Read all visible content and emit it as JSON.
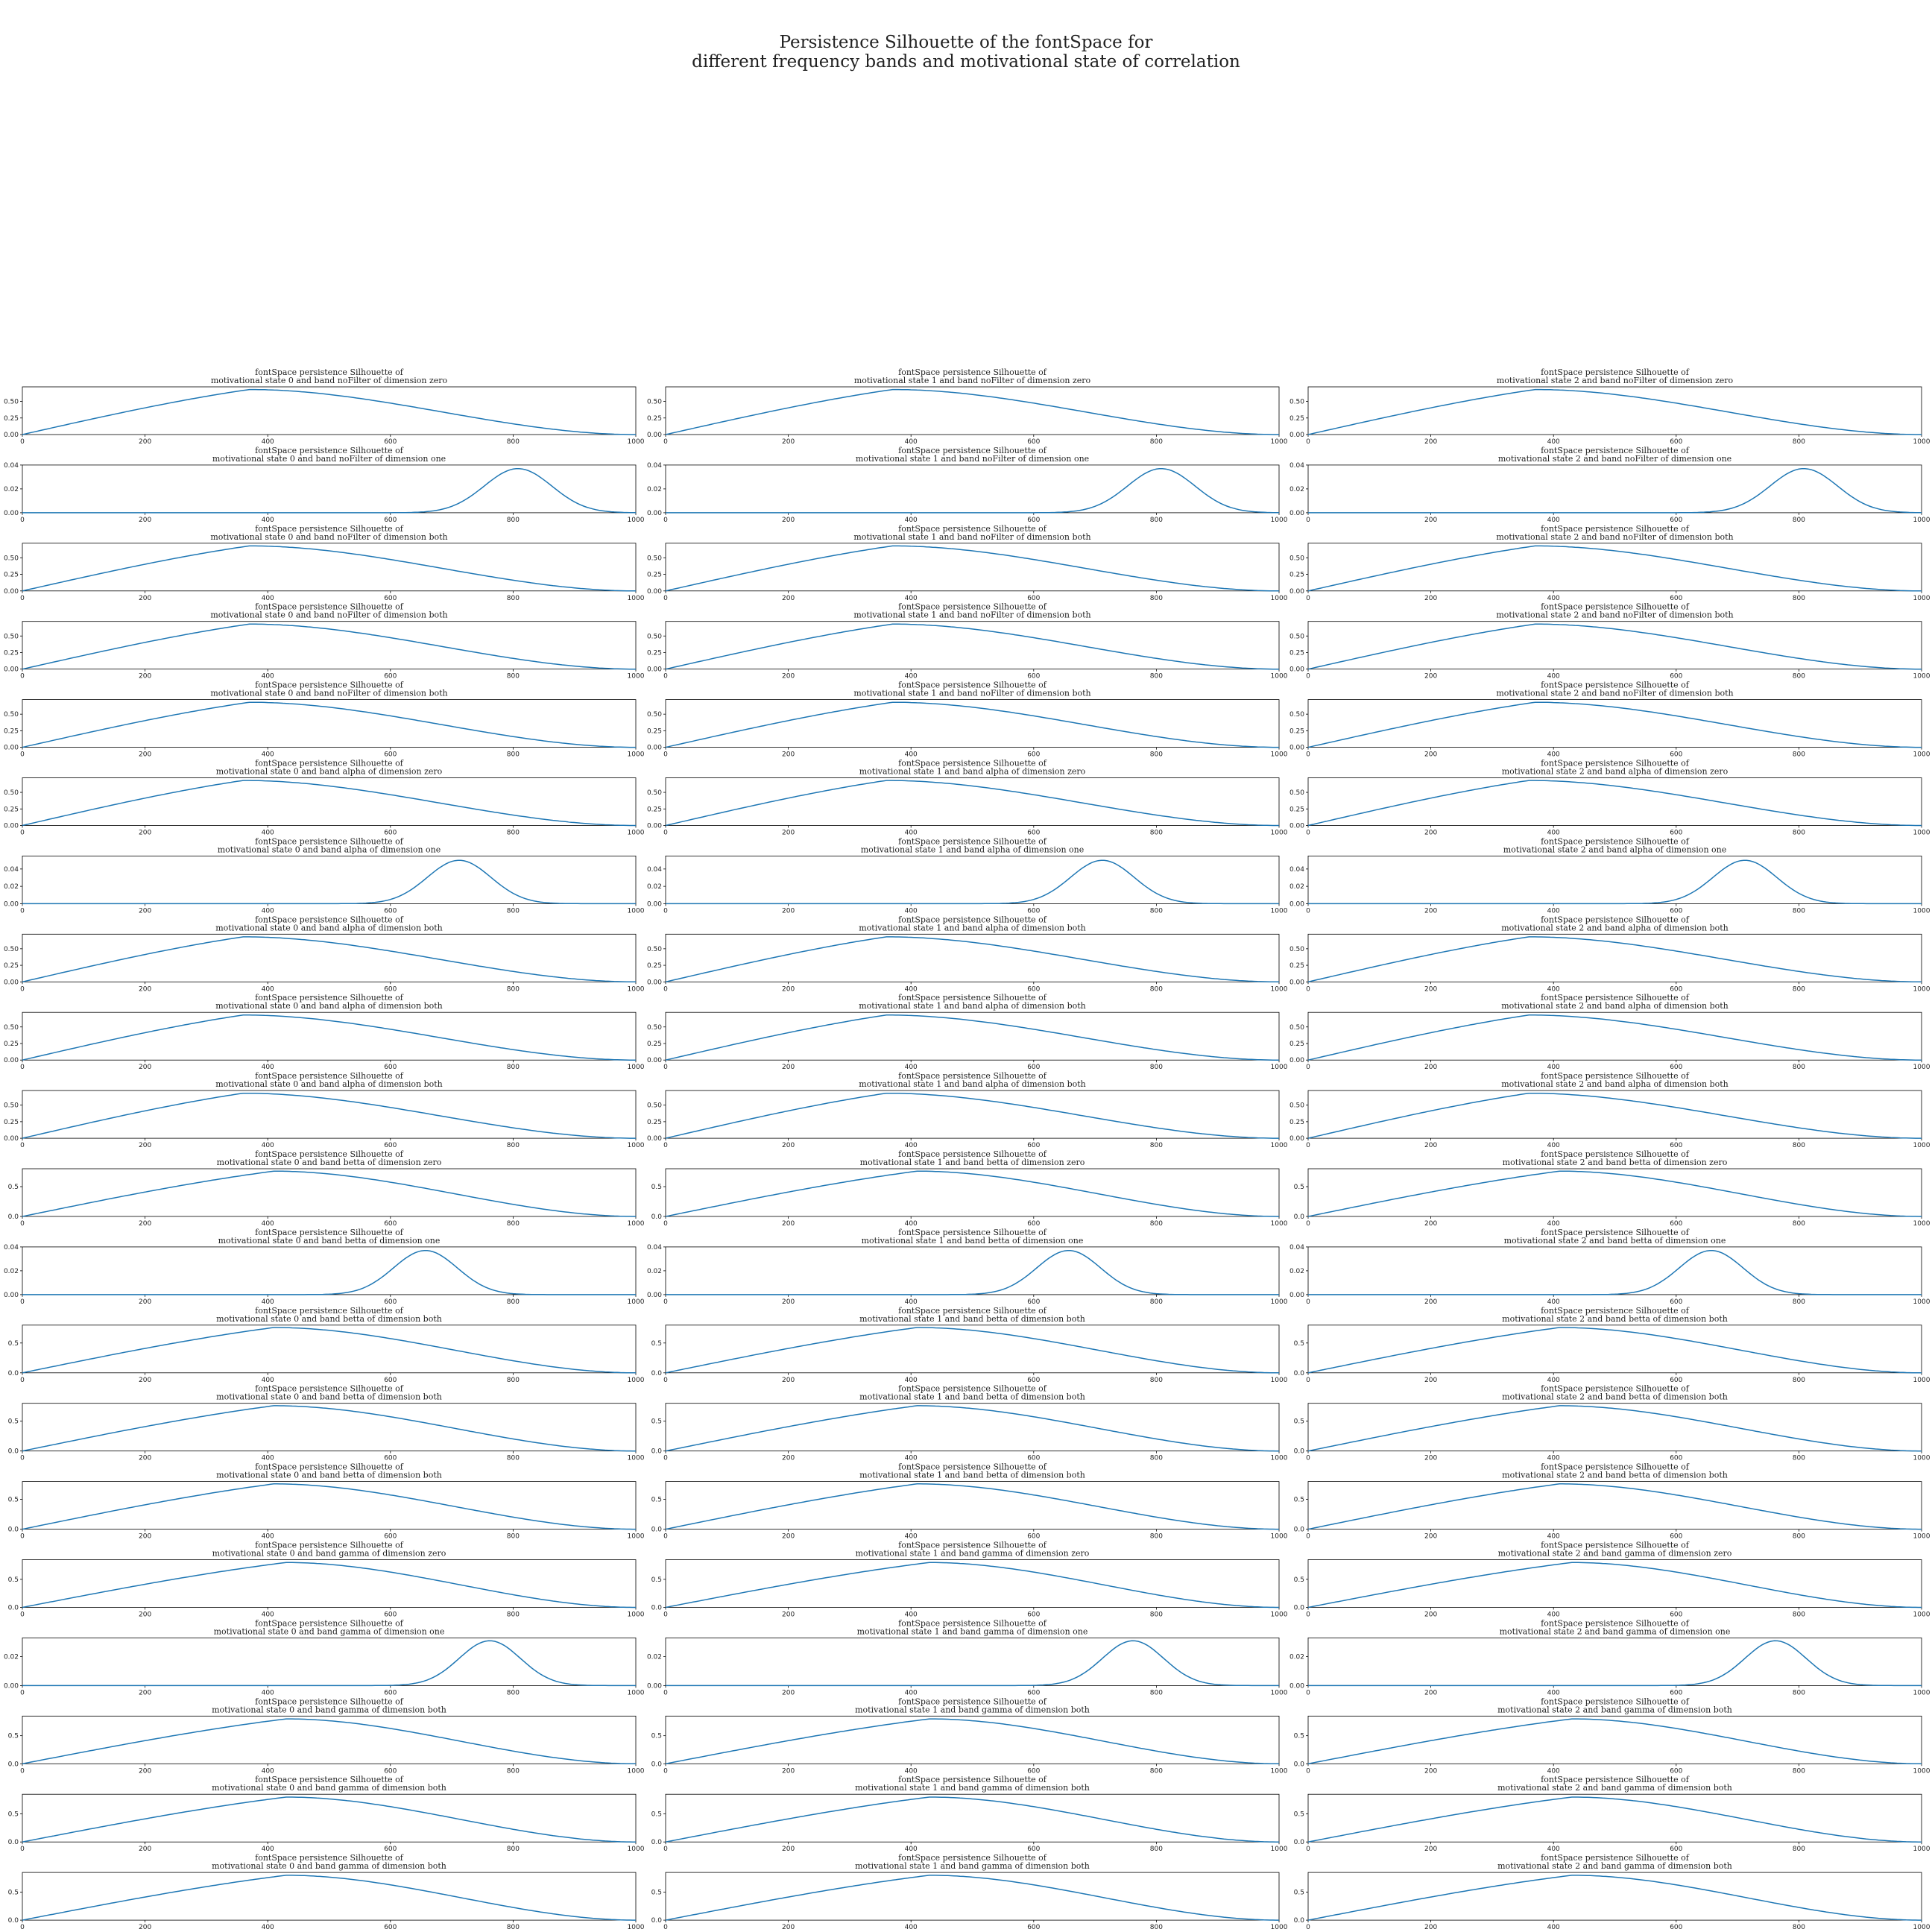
{
  "figure": {
    "title_line1": "Persistence Silhouette of the fontSpace for",
    "title_line2": "different frequency bands and motivational state of correlation"
  },
  "colors": {
    "line": "#1f77b4",
    "axes": "#000000",
    "text": "#222222"
  },
  "chart_data": {
    "type": "line",
    "layout": "grid 20 rows x 3 columns of small multiples",
    "xlim": [
      0,
      1000
    ],
    "x_ticks": [
      "0",
      "200",
      "400",
      "600",
      "800",
      "1000"
    ],
    "title_line1": "fontSpace persistence Silhouette of",
    "grid": false,
    "rows": [
      {
        "band": "noFilter",
        "dimension": "zero",
        "kind": "hump",
        "peak_x": 370,
        "peak_y": 0.68,
        "ylim": [
          0,
          0.72
        ],
        "y_ticks": [
          "0.00",
          "0.25",
          "0.50"
        ],
        "titles": [
          "motivational state 0 and band noFilter of dimension zero",
          "motivational state 1 and band noFilter of dimension zero",
          "motivational state 2 and band noFilter of dimension zero"
        ]
      },
      {
        "band": "noFilter",
        "dimension": "one",
        "kind": "bell",
        "peak_x": 808,
        "peak_y": 0.037,
        "sigma": 55,
        "ylim": [
          0,
          0.04
        ],
        "y_ticks": [
          "0.00",
          "0.02",
          "0.04"
        ],
        "titles": [
          "motivational state 0 and band noFilter of dimension one",
          "motivational state 1 and band noFilter of dimension one",
          "motivational state 2 and band noFilter of dimension one"
        ]
      },
      {
        "band": "noFilter",
        "dimension": "both",
        "kind": "hump",
        "peak_x": 370,
        "peak_y": 0.68,
        "ylim": [
          0,
          0.72
        ],
        "y_ticks": [
          "0.00",
          "0.25",
          "0.50"
        ],
        "titles": [
          "motivational state 0 and band noFilter of dimension both",
          "motivational state 1 and band noFilter of dimension both",
          "motivational state 2 and band noFilter of dimension both"
        ]
      },
      {
        "band": "noFilter",
        "dimension": "both",
        "kind": "hump",
        "peak_x": 370,
        "peak_y": 0.68,
        "ylim": [
          0,
          0.72
        ],
        "y_ticks": [
          "0.00",
          "0.25",
          "0.50"
        ],
        "titles": [
          "motivational state 0 and band noFilter of dimension both",
          "motivational state 1 and band noFilter of dimension both",
          "motivational state 2 and band noFilter of dimension both"
        ]
      },
      {
        "band": "noFilter",
        "dimension": "both",
        "kind": "hump",
        "peak_x": 370,
        "peak_y": 0.68,
        "ylim": [
          0,
          0.72
        ],
        "y_ticks": [
          "0.00",
          "0.25",
          "0.50"
        ],
        "titles": [
          "motivational state 0 and band noFilter of dimension both",
          "motivational state 1 and band noFilter of dimension both",
          "motivational state 2 and band noFilter of dimension both"
        ]
      },
      {
        "band": "alpha",
        "dimension": "zero",
        "kind": "hump",
        "peak_x": 360,
        "peak_y": 0.68,
        "ylim": [
          0,
          0.72
        ],
        "y_ticks": [
          "0.00",
          "0.25",
          "0.50"
        ],
        "titles": [
          "motivational state 0 and band alpha of dimension zero",
          "motivational state 1 and band alpha of dimension zero",
          "motivational state 2 and band alpha of dimension zero"
        ]
      },
      {
        "band": "alpha",
        "dimension": "one",
        "kind": "bell",
        "peak_x": 712,
        "peak_y": 0.05,
        "sigma": 52,
        "ylim": [
          0,
          0.055
        ],
        "y_ticks": [
          "0.00",
          "0.02",
          "0.04"
        ],
        "titles": [
          "motivational state 0 and band alpha of dimension one",
          "motivational state 1 and band alpha of dimension one",
          "motivational state 2 and band alpha of dimension one"
        ]
      },
      {
        "band": "alpha",
        "dimension": "both",
        "kind": "hump",
        "peak_x": 360,
        "peak_y": 0.68,
        "ylim": [
          0,
          0.72
        ],
        "y_ticks": [
          "0.00",
          "0.25",
          "0.50"
        ],
        "titles": [
          "motivational state 0 and band alpha of dimension both",
          "motivational state 1 and band alpha of dimension both",
          "motivational state 2 and band alpha of dimension both"
        ]
      },
      {
        "band": "alpha",
        "dimension": "both",
        "kind": "hump",
        "peak_x": 360,
        "peak_y": 0.68,
        "ylim": [
          0,
          0.72
        ],
        "y_ticks": [
          "0.00",
          "0.25",
          "0.50"
        ],
        "titles": [
          "motivational state 0 and band alpha of dimension both",
          "motivational state 1 and band alpha of dimension both",
          "motivational state 2 and band alpha of dimension both"
        ]
      },
      {
        "band": "alpha",
        "dimension": "both",
        "kind": "hump",
        "peak_x": 360,
        "peak_y": 0.68,
        "ylim": [
          0,
          0.72
        ],
        "y_ticks": [
          "0.00",
          "0.25",
          "0.50"
        ],
        "titles": [
          "motivational state 0 and band alpha of dimension both",
          "motivational state 1 and band alpha of dimension both",
          "motivational state 2 and band alpha of dimension both"
        ]
      },
      {
        "band": "betta",
        "dimension": "zero",
        "kind": "hump",
        "peak_x": 410,
        "peak_y": 0.76,
        "ylim": [
          0,
          0.8
        ],
        "y_ticks": [
          "0.0",
          "0.5"
        ],
        "titles": [
          "motivational state 0 and band betta of dimension zero",
          "motivational state 1 and band betta of dimension zero",
          "motivational state 2 and band betta of dimension zero"
        ]
      },
      {
        "band": "betta",
        "dimension": "one",
        "kind": "bell",
        "peak_x": 657,
        "peak_y": 0.037,
        "sigma": 52,
        "ylim": [
          0,
          0.04
        ],
        "y_ticks": [
          "0.00",
          "0.02",
          "0.04"
        ],
        "titles": [
          "motivational state 0 and band betta of dimension one",
          "motivational state 1 and band betta of dimension one",
          "motivational state 2 and band betta of dimension one"
        ]
      },
      {
        "band": "betta",
        "dimension": "both",
        "kind": "hump",
        "peak_x": 410,
        "peak_y": 0.76,
        "ylim": [
          0,
          0.8
        ],
        "y_ticks": [
          "0.0",
          "0.5"
        ],
        "titles": [
          "motivational state 0 and band betta of dimension both",
          "motivational state 1 and band betta of dimension both",
          "motivational state 2 and band betta of dimension both"
        ]
      },
      {
        "band": "betta",
        "dimension": "both",
        "kind": "hump",
        "peak_x": 410,
        "peak_y": 0.76,
        "ylim": [
          0,
          0.8
        ],
        "y_ticks": [
          "0.0",
          "0.5"
        ],
        "titles": [
          "motivational state 0 and band betta of dimension both",
          "motivational state 1 and band betta of dimension both",
          "motivational state 2 and band betta of dimension both"
        ]
      },
      {
        "band": "betta",
        "dimension": "both",
        "kind": "hump",
        "peak_x": 410,
        "peak_y": 0.76,
        "ylim": [
          0,
          0.8
        ],
        "y_ticks": [
          "0.0",
          "0.5"
        ],
        "titles": [
          "motivational state 0 and band betta of dimension both",
          "motivational state 1 and band betta of dimension both",
          "motivational state 2 and band betta of dimension both"
        ]
      },
      {
        "band": "gamma",
        "dimension": "zero",
        "kind": "hump",
        "peak_x": 430,
        "peak_y": 0.8,
        "ylim": [
          0,
          0.85
        ],
        "y_ticks": [
          "0.0",
          "0.5"
        ],
        "titles": [
          "motivational state 0 and band gamma of dimension zero",
          "motivational state 1 and band gamma of dimension zero",
          "motivational state 2 and band gamma of dimension zero"
        ]
      },
      {
        "band": "gamma",
        "dimension": "one",
        "kind": "bell",
        "peak_x": 762,
        "peak_y": 0.031,
        "sigma": 50,
        "ylim": [
          0,
          0.033
        ],
        "y_ticks": [
          "0.00",
          "0.02"
        ],
        "titles": [
          "motivational state 0 and band gamma of dimension one",
          "motivational state 1 and band gamma of dimension one",
          "motivational state 2 and band gamma of dimension one"
        ]
      },
      {
        "band": "gamma",
        "dimension": "both",
        "kind": "hump",
        "peak_x": 430,
        "peak_y": 0.8,
        "ylim": [
          0,
          0.85
        ],
        "y_ticks": [
          "0.0",
          "0.5"
        ],
        "titles": [
          "motivational state 0 and band gamma of dimension both",
          "motivational state 1 and band gamma of dimension both",
          "motivational state 2 and band gamma of dimension both"
        ]
      },
      {
        "band": "gamma",
        "dimension": "both",
        "kind": "hump",
        "peak_x": 430,
        "peak_y": 0.8,
        "ylim": [
          0,
          0.85
        ],
        "y_ticks": [
          "0.0",
          "0.5"
        ],
        "titles": [
          "motivational state 0 and band gamma of dimension both",
          "motivational state 1 and band gamma of dimension both",
          "motivational state 2 and band gamma of dimension both"
        ]
      },
      {
        "band": "gamma",
        "dimension": "both",
        "kind": "hump",
        "peak_x": 430,
        "peak_y": 0.8,
        "ylim": [
          0,
          0.85
        ],
        "y_ticks": [
          "0.0",
          "0.5"
        ],
        "titles": [
          "motivational state 0 and band gamma of dimension both",
          "motivational state 1 and band gamma of dimension both",
          "motivational state 2 and band gamma of dimension both"
        ]
      }
    ]
  }
}
